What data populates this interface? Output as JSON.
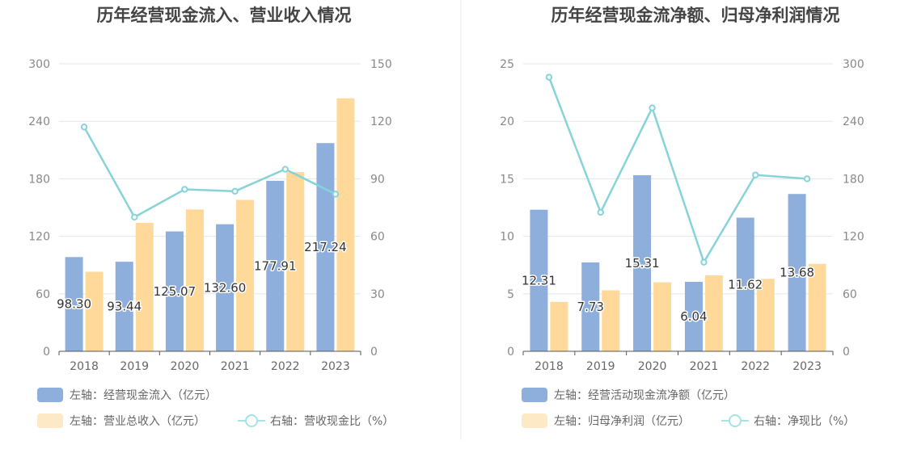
{
  "colors": {
    "left_bar": "#8eaedc",
    "right_bar": "#ffd99a",
    "line": "#86d3d8",
    "legend_bar2_swatch": "#fde9c6",
    "legend_line": "#a6e3e6",
    "grid": "#e3e5ee",
    "axis": "#555555",
    "divider": "#eeeeee"
  },
  "chart_data": [
    {
      "type": "bar",
      "title": "历年经营现金流入、营业收入情况",
      "categories": [
        "2018",
        "2019",
        "2020",
        "2021",
        "2022",
        "2023"
      ],
      "y_left": {
        "ticks": [
          "0",
          "60",
          "120",
          "180",
          "240",
          "300"
        ],
        "lim": [
          0,
          300
        ]
      },
      "y_right": {
        "ticks": [
          "0",
          "30",
          "60",
          "90",
          "120",
          "150"
        ],
        "lim": [
          0,
          150
        ]
      },
      "series": [
        {
          "name": "左轴：经营现金流入（亿元）",
          "axis": "left",
          "kind": "bar",
          "values": [
            98.3,
            93.44,
            125.07,
            132.6,
            177.91,
            217.24
          ],
          "labels": [
            "98.30",
            "93.44",
            "125.07",
            "132.60",
            "177.91",
            "217.24"
          ]
        },
        {
          "name": "左轴：营业总收入（亿元）",
          "axis": "left",
          "kind": "bar",
          "values": [
            83,
            134,
            148,
            158,
            187,
            264
          ]
        },
        {
          "name": "右轴：营收现金比（%）",
          "axis": "right",
          "kind": "line",
          "values": [
            117,
            70,
            84.5,
            83.5,
            95,
            82
          ]
        }
      ]
    },
    {
      "type": "bar",
      "title": "历年经营现金流净额、归母净利润情况",
      "categories": [
        "2018",
        "2019",
        "2020",
        "2021",
        "2022",
        "2023"
      ],
      "y_left": {
        "ticks": [
          "0",
          "5",
          "10",
          "15",
          "20",
          "25"
        ],
        "lim": [
          0,
          25
        ]
      },
      "y_right": {
        "ticks": [
          "0",
          "60",
          "120",
          "180",
          "240",
          "300"
        ],
        "lim": [
          0,
          300
        ]
      },
      "series": [
        {
          "name": "左轴：经营活动现金流净额（亿元）",
          "axis": "left",
          "kind": "bar",
          "values": [
            12.31,
            7.73,
            15.31,
            6.04,
            11.62,
            13.68
          ],
          "labels": [
            "12.31",
            "7.73",
            "15.31",
            "6.04",
            "11.62",
            "13.68"
          ]
        },
        {
          "name": "左轴：归母净利润（亿元）",
          "axis": "left",
          "kind": "bar",
          "values": [
            4.3,
            5.3,
            6.0,
            6.6,
            6.3,
            7.6
          ]
        },
        {
          "name": "右轴：净现比（%）",
          "axis": "right",
          "kind": "line",
          "values": [
            286,
            145,
            254,
            93,
            184,
            180
          ]
        }
      ]
    }
  ]
}
